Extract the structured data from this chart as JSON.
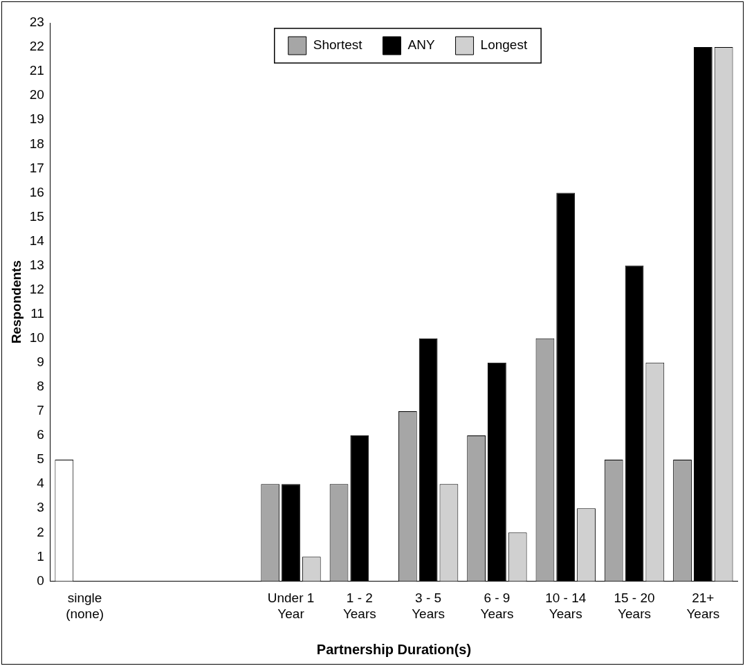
{
  "chart_data": {
    "type": "bar",
    "xlabel": "Partnership Duration(s)",
    "ylabel": "Respondents",
    "categories": [
      "single (none)",
      null,
      null,
      "Under 1 Year",
      "1 - 2 Years",
      "3 - 5 Years",
      "6 - 9 Years",
      "10 - 14 Years",
      "15 - 20 Years",
      "21+ Years"
    ],
    "series": [
      {
        "name": "Shortest",
        "color": "#a6a6a6",
        "colors": [
          "#ffffff",
          "#a6a6a6",
          "#a6a6a6",
          "#a6a6a6",
          "#a6a6a6",
          "#a6a6a6",
          "#a6a6a6",
          "#a6a6a6",
          "#a6a6a6",
          "#a6a6a6"
        ],
        "values": [
          5,
          null,
          null,
          4,
          4,
          7,
          6,
          10,
          5,
          5
        ]
      },
      {
        "name": "ANY",
        "color": "#000000",
        "values": [
          null,
          null,
          null,
          4,
          6,
          10,
          9,
          16,
          13,
          22
        ]
      },
      {
        "name": "Longest",
        "color": "#d0d0d0",
        "values": [
          null,
          null,
          null,
          1,
          null,
          4,
          2,
          3,
          9,
          22
        ]
      }
    ],
    "ylim": [
      0,
      23
    ],
    "yticks": [
      0,
      1,
      2,
      3,
      4,
      5,
      6,
      7,
      8,
      9,
      10,
      11,
      12,
      13,
      14,
      15,
      16,
      17,
      18,
      19,
      20,
      21,
      22,
      23
    ],
    "grid": false,
    "legend": "top"
  }
}
